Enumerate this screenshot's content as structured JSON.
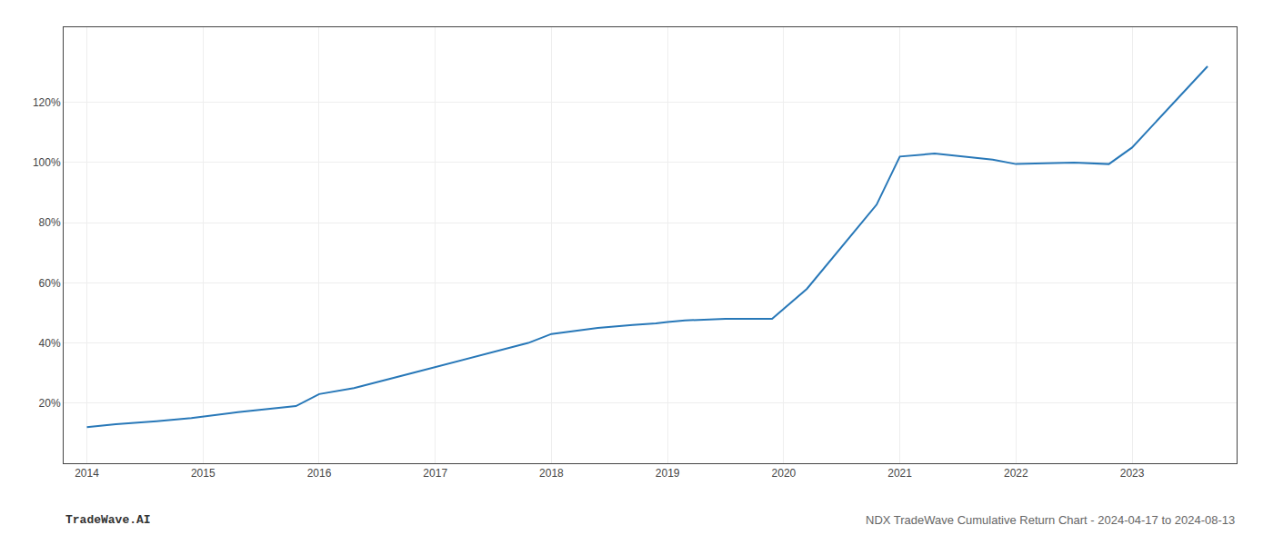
{
  "chart_data": {
    "type": "line",
    "x": [
      2014.0,
      2014.25,
      2014.6,
      2014.9,
      2015.3,
      2015.8,
      2016.0,
      2016.3,
      2016.8,
      2017.3,
      2017.8,
      2018.0,
      2018.4,
      2018.7,
      2018.9,
      2019.0,
      2019.15,
      2019.5,
      2019.9,
      2020.2,
      2020.5,
      2020.8,
      2021.0,
      2021.3,
      2021.8,
      2022.0,
      2022.5,
      2022.8,
      2023.0,
      2023.5,
      2023.65
    ],
    "values": [
      12,
      13,
      14,
      15,
      17,
      19,
      23,
      25,
      30,
      35,
      40,
      43,
      45,
      46,
      46.5,
      47,
      47.5,
      48,
      48,
      58,
      72,
      86,
      102,
      103,
      101,
      99.5,
      100,
      99.5,
      105,
      126,
      132
    ],
    "color": "#2878b8",
    "xlim": [
      2013.8,
      2023.9
    ],
    "xticks": [
      2014,
      2015,
      2016,
      2017,
      2018,
      2019,
      2020,
      2021,
      2022,
      2023
    ],
    "ylim": [
      0,
      145
    ],
    "yticks": [
      {
        "value": 20,
        "label": "20%"
      },
      {
        "value": 40,
        "label": "40%"
      },
      {
        "value": 60,
        "label": "60%"
      },
      {
        "value": 80,
        "label": "80%"
      },
      {
        "value": 100,
        "label": "100%"
      },
      {
        "value": 120,
        "label": "120%"
      }
    ],
    "grid": true,
    "annotations": [
      "TradeWave.AI",
      "NDX TradeWave Cumulative Return Chart - 2024-04-17 to 2024-08-13"
    ]
  }
}
